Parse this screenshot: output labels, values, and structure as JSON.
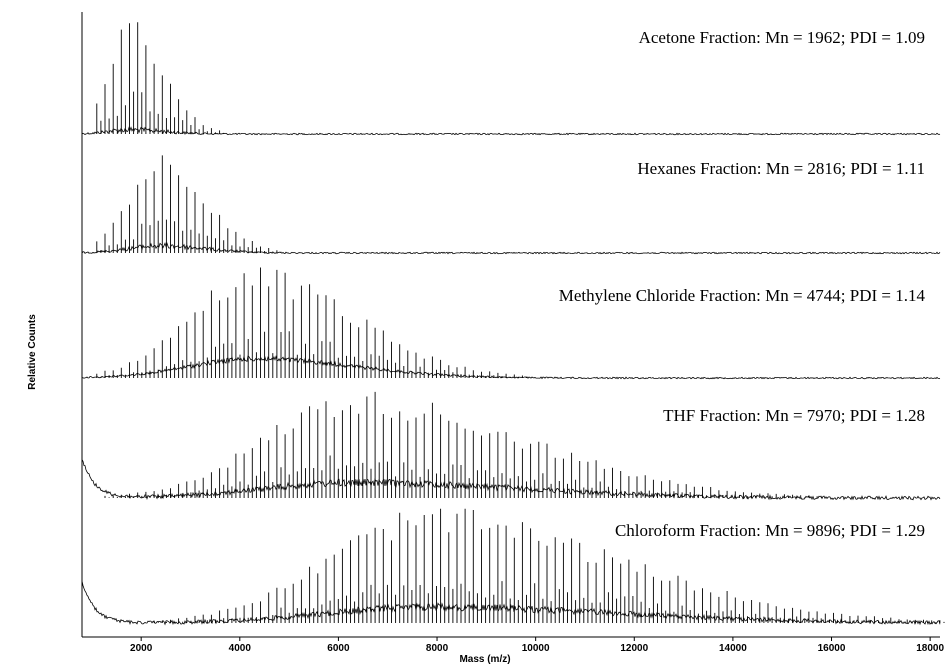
{
  "chart_data": {
    "type": "line",
    "xlabel": "Mass (m/z)",
    "ylabel": "Relative Counts",
    "xlim": [
      800,
      18200
    ],
    "x_ticks": [
      2000,
      4000,
      6000,
      8000,
      10000,
      12000,
      14000,
      16000,
      18000
    ],
    "x_tick_labels": [
      "2000",
      "4000",
      "6000",
      "8000",
      "10000",
      "12000",
      "14000",
      "16000",
      "18000"
    ],
    "series": [
      {
        "name": "Acetone Fraction",
        "label": "Acetone Fraction:  Mn = 1962; PDI = 1.09",
        "mn": 1962,
        "pdi": 1.09,
        "peak_center": 1750,
        "width_low": 420,
        "width_high": 700,
        "peak_rel_height": 1.0,
        "baseline_hump": 0.04
      },
      {
        "name": "Hexanes Fraction",
        "label": "Hexanes Fraction:  Mn = 2816; PDI = 1.11",
        "mn": 2816,
        "pdi": 1.11,
        "peak_center": 2400,
        "width_low": 650,
        "width_high": 900,
        "peak_rel_height": 0.9,
        "baseline_hump": 0.07
      },
      {
        "name": "Methylene Chloride Fraction",
        "label": "Methylene Chloride Fraction:  Mn = 4744; PDI = 1.14",
        "mn": 4744,
        "pdi": 1.14,
        "peak_center": 4300,
        "width_low": 1300,
        "width_high": 2000,
        "peak_rel_height": 0.95,
        "baseline_hump": 0.18
      },
      {
        "name": "THF Fraction",
        "label": "THF Fraction:  Mn = 7970; PDI = 1.28",
        "mn": 7970,
        "pdi": 1.28,
        "peak_center": 6300,
        "width_low": 1800,
        "width_high": 3400,
        "peak_rel_height": 0.95,
        "baseline_hump": 0.15
      },
      {
        "name": "Chloroform Fraction",
        "label": "Chloroform Fraction:  Mn = 9896; PDI = 1.29",
        "mn": 9896,
        "pdi": 1.29,
        "peak_center": 7800,
        "width_low": 2000,
        "width_high": 3800,
        "peak_rel_height": 0.98,
        "baseline_hump": 0.15
      }
    ],
    "colors": {
      "trace": "#000000",
      "axis": "#000000",
      "background": "#ffffff"
    }
  }
}
